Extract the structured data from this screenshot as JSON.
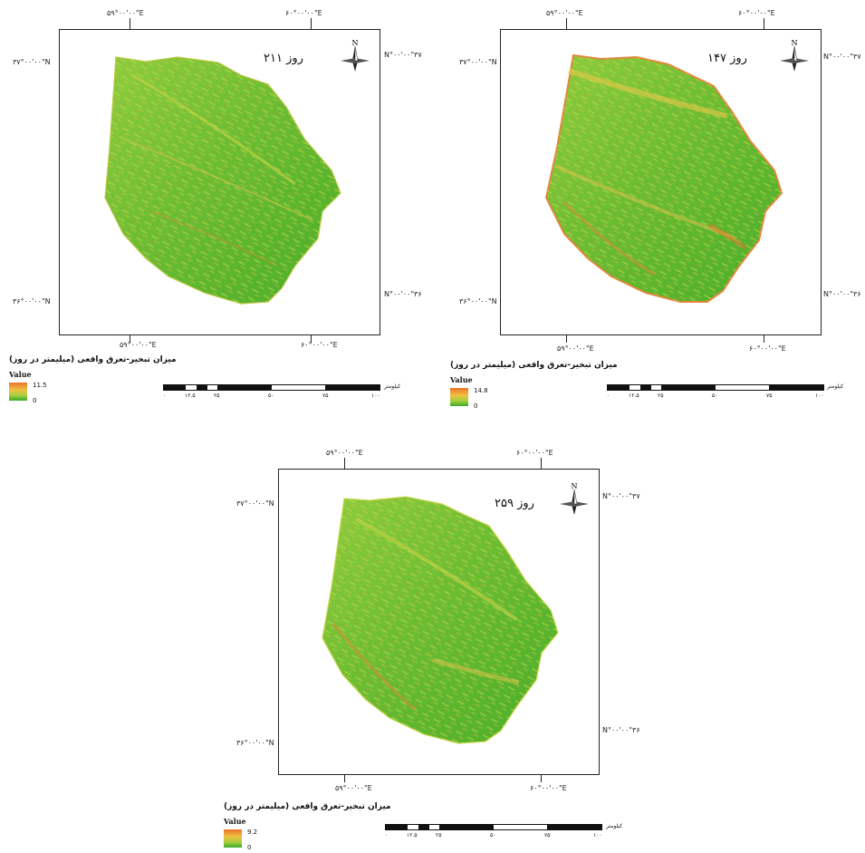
{
  "panels": [
    {
      "id": "day211",
      "day_label": "روز ۲۱۱",
      "coord_top_left": "۵۹°۰۰'۰۰\"E",
      "coord_top_right": "۶۰°۰۰'۰۰\"E",
      "coord_left_top": "۳۷°۰۰'۰۰\"N",
      "coord_right_top": "N°۰۰'۰۰\"۳۷",
      "coord_left_bottom": "۳۶°۰۰'۰۰\"N",
      "coord_right_bottom": "N°۰۰'۰۰\"۳۶",
      "coord_bottom_left": "۵۹°۰۰'۰۰\"E",
      "coord_bottom_right": "۶۰°۰۰'۰۰\"E",
      "legend_title": "میزان تبخیر-تعرق واقعی (میلیمتر در روز)",
      "legend_value_label": "Value",
      "legend_max": "11.5",
      "legend_min": "0",
      "scale_unit": "کیلومتر",
      "scale_ticks": [
        "۰",
        "۱۲.۵",
        "۲۵",
        "۵۰",
        "۷۵",
        "۱۰۰"
      ]
    },
    {
      "id": "day147",
      "day_label": "روز ۱۴۷",
      "coord_top_left": "۵۹°۰۰'۰۰\"E",
      "coord_top_right": "۶۰°۰۰'۰۰\"E",
      "coord_left_top": "۳۷°۰۰'۰۰\"N",
      "coord_right_top": "N°۰۰'۰۰\"۳۷",
      "coord_left_bottom": "۳۶°۰۰'۰۰\"N",
      "coord_right_bottom": "N°۰۰'۰۰\"۳۶",
      "coord_bottom_left": "۵۹°۰۰'۰۰\"E",
      "coord_bottom_right": "۶۰°۰۰'۰۰\"E",
      "legend_title": "میزان تبخیر-تعرق واقعی (میلیمتر در روز)",
      "legend_value_label": "Value",
      "legend_max": "14.8",
      "legend_min": "0",
      "scale_unit": "کیلومتر",
      "scale_ticks": [
        "۰",
        "۱۲.۵",
        "۲۵",
        "۵۰",
        "۷۵",
        "۱۰۰"
      ]
    },
    {
      "id": "day259",
      "day_label": "روز ۲۵۹",
      "coord_top_left": "۵۹°۰۰'۰۰\"E",
      "coord_top_right": "۶۰°۰۰'۰۰\"E",
      "coord_left_top": "۳۷°۰۰'۰۰\"N",
      "coord_right_top": "N°۰۰'۰۰\"۳۷",
      "coord_left_bottom": "۳۶°۰۰'۰۰\"N",
      "coord_right_bottom": "N°۰۰'۰۰\"۳۶",
      "coord_bottom_left": "۵۹°۰۰'۰۰\"E",
      "coord_bottom_right": "۶۰°۰۰'۰۰\"E",
      "legend_title": "میزان تبخیر-تعرق واقعی (میلیمتر در روز)",
      "legend_value_label": "Value",
      "legend_max": "9.2",
      "legend_min": "0",
      "scale_unit": "کیلومتر",
      "scale_ticks": [
        "۰",
        "۱۲.۵",
        "۲۵",
        "۵۰",
        "۷۵",
        "۱۰۰"
      ]
    }
  ],
  "north_arrow_label": "N",
  "colors": {
    "high": "#e8732c",
    "mid": "#f0c040",
    "low": "#3aaa2a"
  }
}
